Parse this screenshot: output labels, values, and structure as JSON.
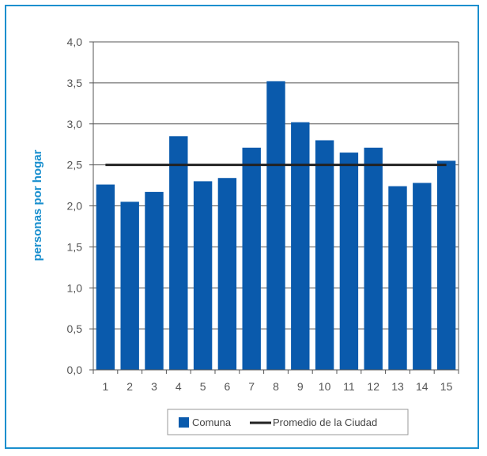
{
  "chart_data": {
    "type": "bar",
    "categories": [
      "1",
      "2",
      "3",
      "4",
      "5",
      "6",
      "7",
      "8",
      "9",
      "10",
      "11",
      "12",
      "13",
      "14",
      "15"
    ],
    "series": [
      {
        "name": "Comuna",
        "values": [
          2.26,
          2.05,
          2.17,
          2.85,
          2.3,
          2.34,
          2.71,
          3.52,
          3.02,
          2.8,
          2.65,
          2.71,
          2.24,
          2.28,
          2.55
        ],
        "color": "#0a5aac"
      }
    ],
    "reference_line": {
      "name": "Promedio de la Ciudad",
      "value": 2.5,
      "color": "#222222"
    },
    "ylabel": "personas por hogar",
    "xlabel": "",
    "ylim": [
      0,
      4.0
    ],
    "yticks": [
      "0,0",
      "0,5",
      "1,0",
      "1,5",
      "2,0",
      "2,5",
      "3,0",
      "3,5",
      "4,0"
    ],
    "grid": true,
    "legend_position": "bottom",
    "frame_color": "#1a8fce"
  }
}
